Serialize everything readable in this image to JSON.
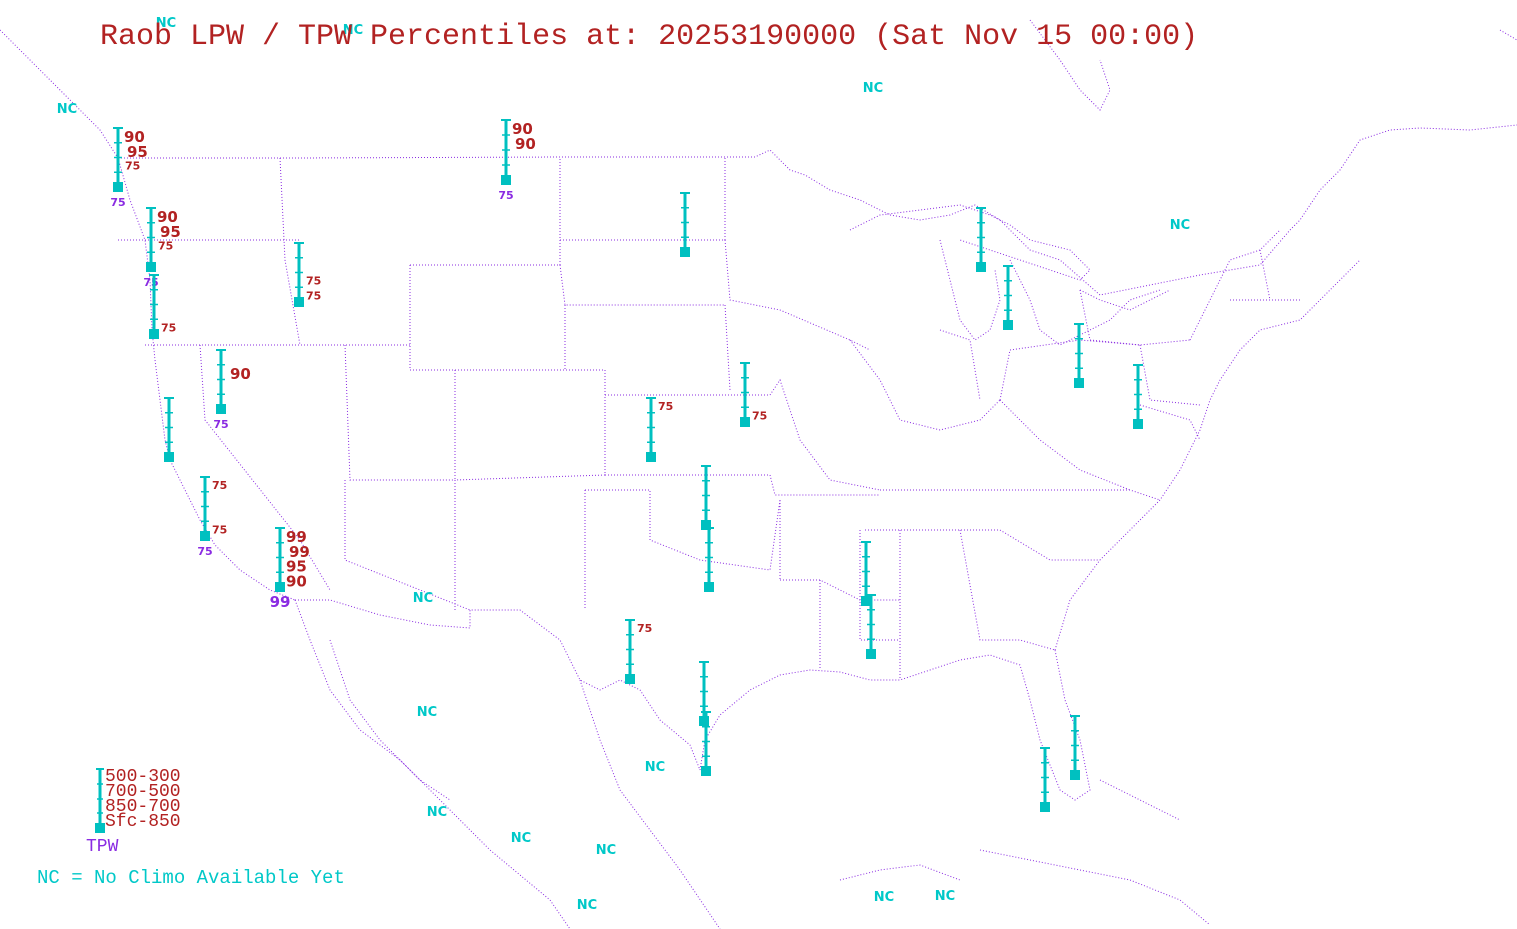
{
  "title": "Raob LPW / TPW Percentiles at: 20253190000 (Sat Nov 15 00:00)",
  "colors": {
    "border": "#8a2be2",
    "station": "#00c0c0",
    "layer_pct": "#b22222",
    "tpw_pct": "#8a2be2",
    "nc": "#00c8c8"
  },
  "legend": {
    "layers": [
      "500-300",
      "700-500",
      "850-700",
      "Sfc-850"
    ],
    "tpw_label": "TPW",
    "nc_note": "NC = No Climo Available Yet"
  },
  "nc_label": "NC",
  "stations": [
    {
      "id": "annette",
      "layers": {
        "500-300": "90",
        "700-500": "95",
        "850-700": "75"
      },
      "tpw": "75"
    },
    {
      "id": "quillayute",
      "layers": {
        "500-300": "90",
        "700-500": "95",
        "850-700": "75"
      },
      "tpw": "75"
    },
    {
      "id": "salem",
      "layers": {
        "sfc-850": "75"
      },
      "tpw": ""
    },
    {
      "id": "great-falls",
      "layers": {
        "500-300": "90",
        "700-500": "90"
      },
      "tpw": "75"
    },
    {
      "id": "boise",
      "layers": {
        "850-700": "75",
        "sfc-850": "75"
      },
      "tpw": ""
    },
    {
      "id": "bismarck",
      "layers": {},
      "tpw": ""
    },
    {
      "id": "reno",
      "layers": {
        "700-500": "90"
      },
      "tpw": "75"
    },
    {
      "id": "oakland",
      "layers": {},
      "tpw": ""
    },
    {
      "id": "vandenberg",
      "layers": {
        "500-300": "75",
        "sfc-850": "75"
      },
      "tpw": "75"
    },
    {
      "id": "las-vegas",
      "layers": {
        "500-300": "99",
        "700-500": "99",
        "850-700": "95",
        "sfc-850": "90"
      },
      "tpw": "99"
    },
    {
      "id": "dodge-city",
      "layers": {
        "500-300": "75"
      },
      "tpw": ""
    },
    {
      "id": "topeka",
      "layers": {
        "sfc-850": "75"
      },
      "tpw": ""
    },
    {
      "id": "norman",
      "layers": {},
      "tpw": ""
    },
    {
      "id": "fort-worth",
      "layers": {},
      "tpw": ""
    },
    {
      "id": "midland",
      "layers": {
        "500-300": "75"
      },
      "tpw": ""
    },
    {
      "id": "corpus-christi",
      "layers": {},
      "tpw": ""
    },
    {
      "id": "brownsville",
      "layers": {},
      "tpw": ""
    },
    {
      "id": "jackson",
      "layers": {},
      "tpw": ""
    },
    {
      "id": "slidell",
      "layers": {},
      "tpw": ""
    },
    {
      "id": "gaylord",
      "layers": {},
      "tpw": ""
    },
    {
      "id": "white-lake",
      "layers": {},
      "tpw": ""
    },
    {
      "id": "pittsburgh",
      "layers": {},
      "tpw": ""
    },
    {
      "id": "sterling",
      "layers": {},
      "tpw": ""
    },
    {
      "id": "miami",
      "layers": {},
      "tpw": ""
    },
    {
      "id": "key-west",
      "layers": {},
      "tpw": ""
    }
  ]
}
